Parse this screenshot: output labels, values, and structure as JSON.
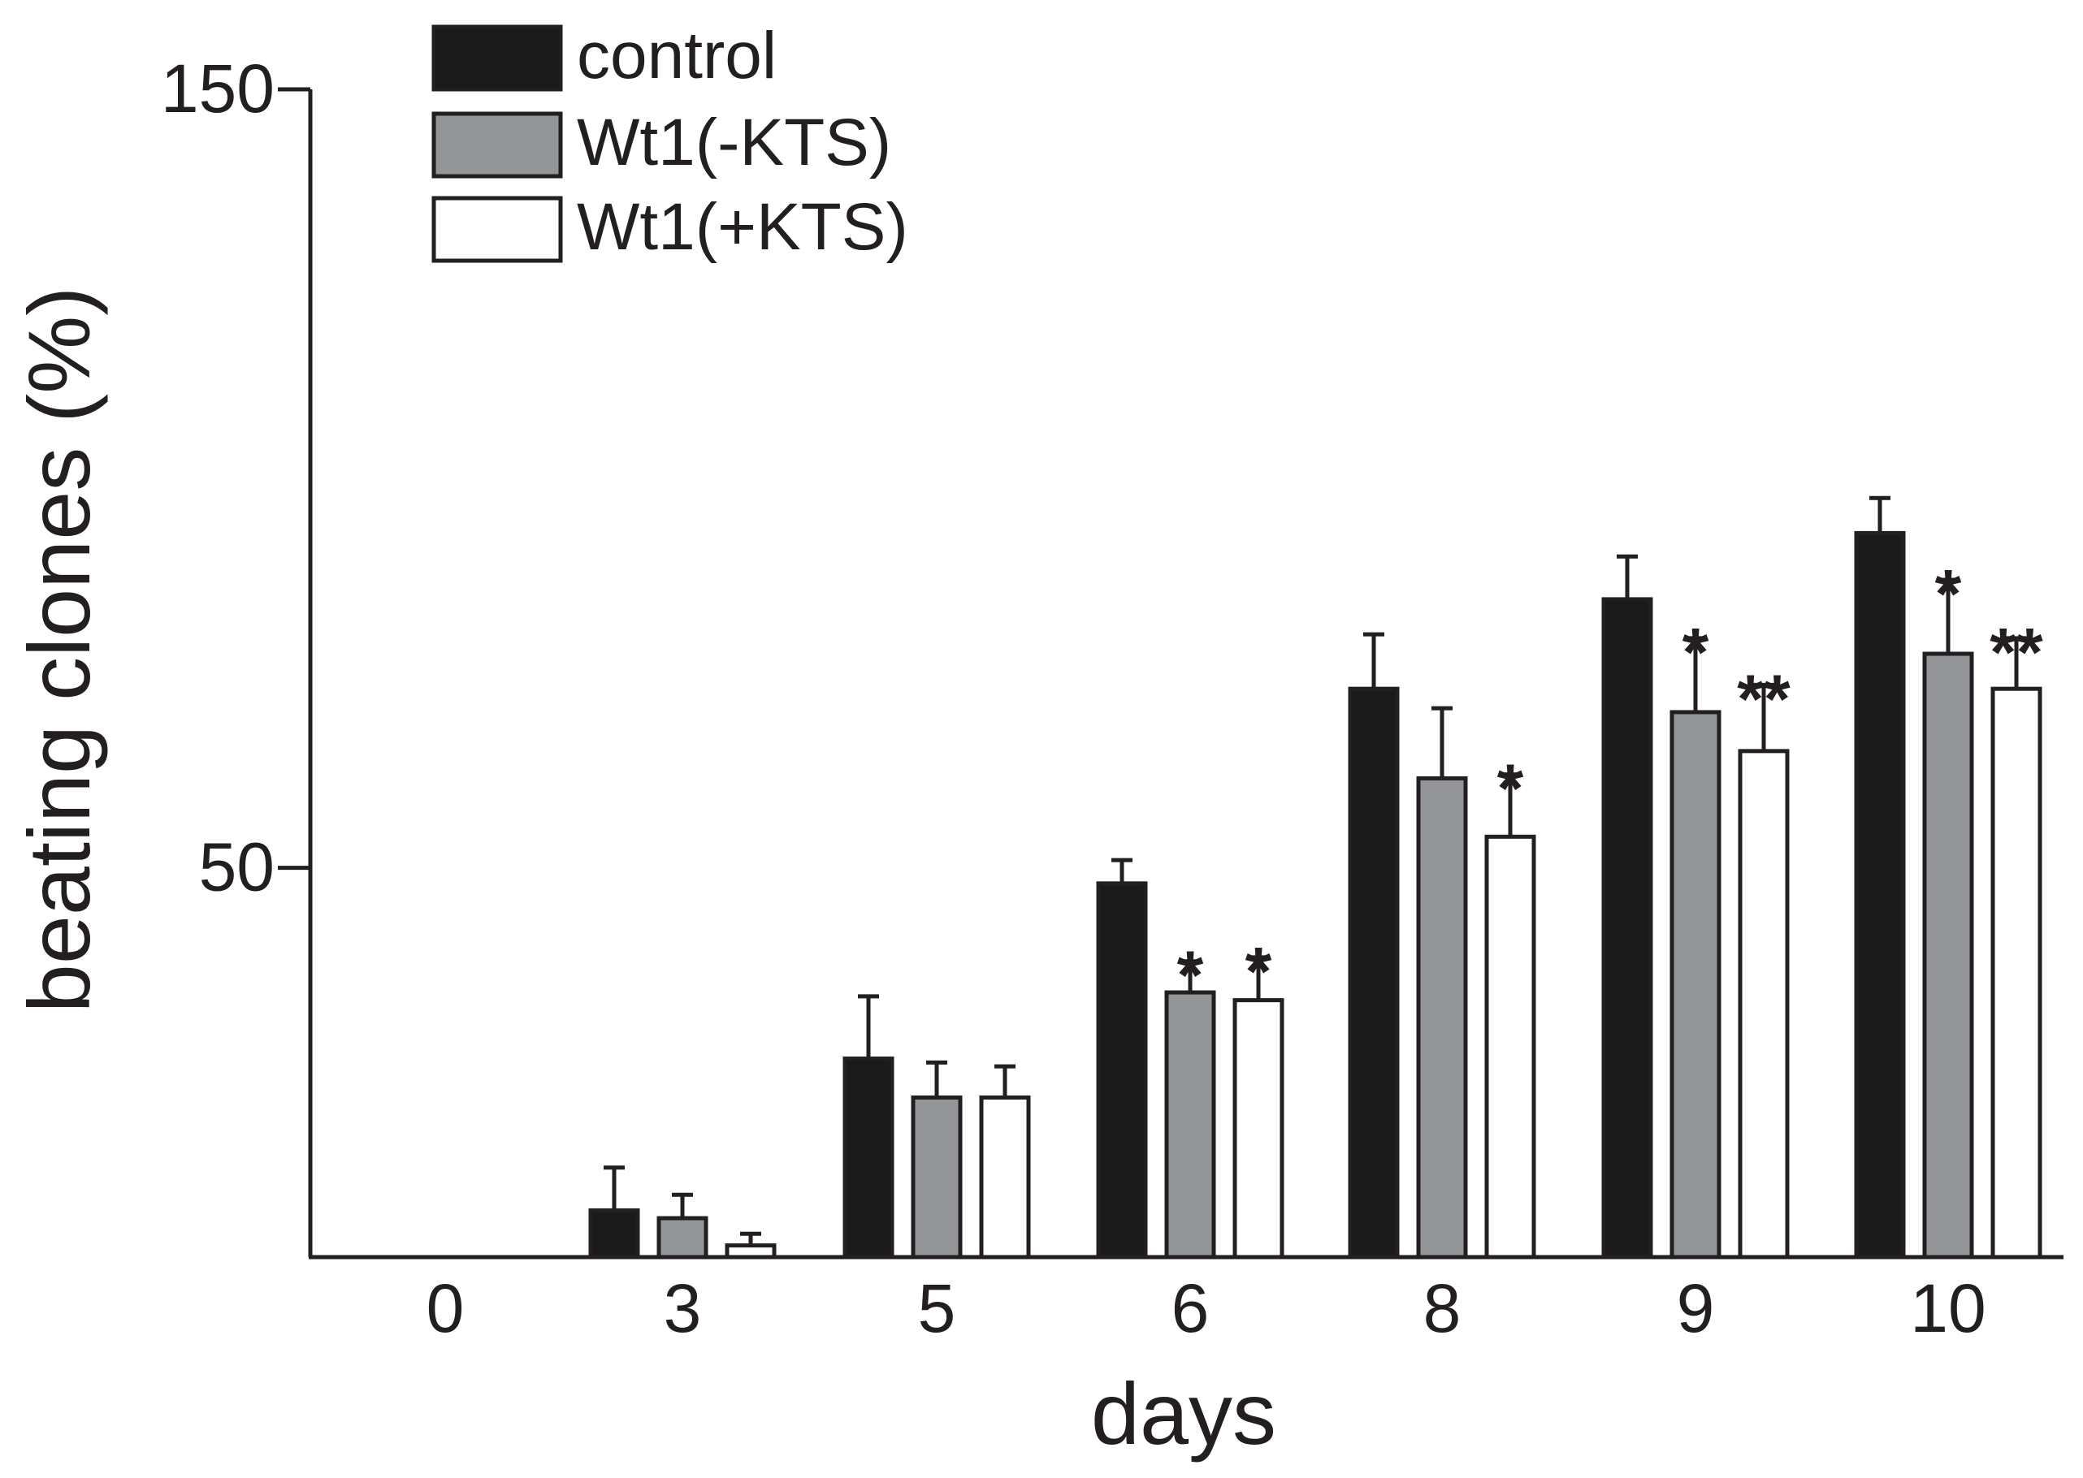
{
  "chart_data": {
    "type": "bar",
    "title": "",
    "xlabel": "days",
    "ylabel": "beating clones (%)",
    "ylim": [
      0,
      150
    ],
    "y_ticks": [
      {
        "value": 150,
        "label": "150"
      },
      {
        "value": 50,
        "label": "50"
      }
    ],
    "x_axis_starts_at": 0,
    "grid": false,
    "legend_position": "top-left",
    "categories": [
      "0",
      "3",
      "5",
      "6",
      "8",
      "9",
      "10"
    ],
    "series": [
      {
        "name": "control",
        "fill": "#1a1a1a",
        "values": [
          0,
          6,
          25.5,
          48,
          73,
          84.5,
          93
        ],
        "errors": [
          0,
          5.5,
          8,
          3,
          7,
          5.5,
          4.5
        ],
        "stars": [
          "",
          "",
          "",
          "",
          "",
          "",
          ""
        ]
      },
      {
        "name": "Wt1(-KTS)",
        "fill": "#939598",
        "values": [
          0,
          5,
          20.5,
          34,
          61.5,
          70,
          77.5
        ],
        "errors": [
          0,
          3,
          4.5,
          4,
          9,
          9.5,
          9.5
        ],
        "stars": [
          "",
          "",
          "",
          "*",
          "",
          "*",
          "*"
        ]
      },
      {
        "name": "Wt1(+KTS)",
        "fill": "#ffffff",
        "values": [
          0,
          1.5,
          20.5,
          33,
          54,
          65,
          73
        ],
        "errors": [
          0,
          1.5,
          4,
          5.5,
          8,
          8.5,
          6.5
        ],
        "stars": [
          "",
          "",
          "",
          "*",
          "*",
          "**",
          "**"
        ]
      }
    ]
  }
}
